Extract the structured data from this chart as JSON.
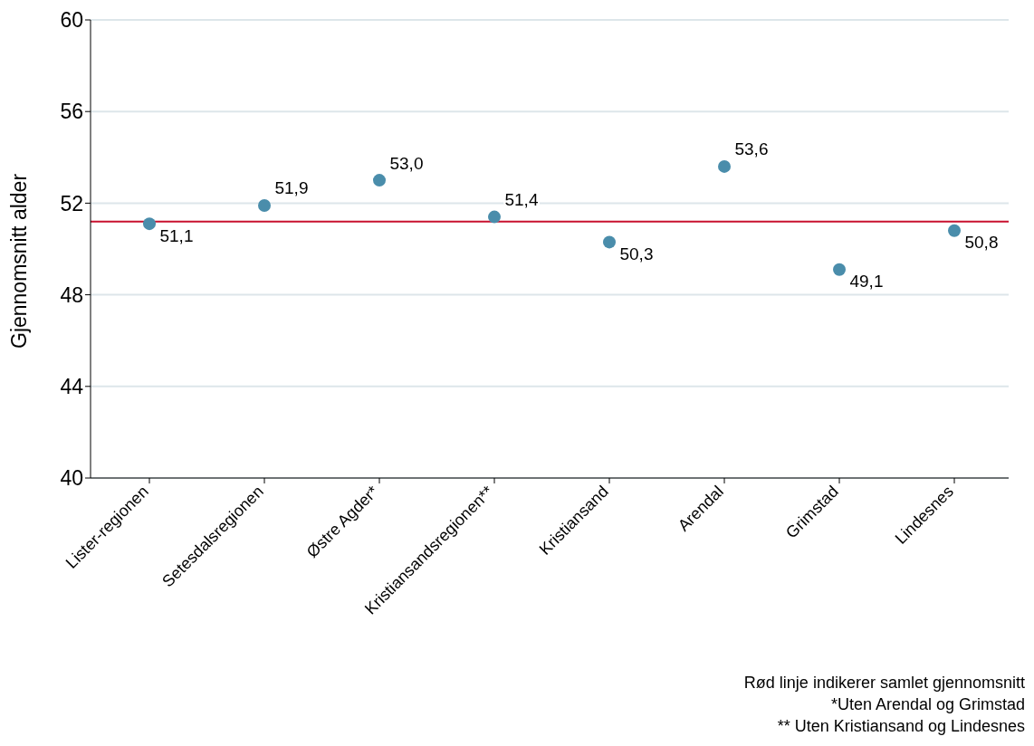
{
  "chart_data": {
    "type": "scatter",
    "ylabel": "Gjennomsnitt alder",
    "categories": [
      "Lister-regionen",
      "Setesdalsregionen",
      "Østre Agder*",
      "Kristiansandsregionen**",
      "Kristiansand",
      "Arendal",
      "Grimstad",
      "Lindesnes"
    ],
    "values": [
      51.1,
      51.9,
      53.0,
      51.4,
      50.3,
      53.6,
      49.1,
      50.8
    ],
    "value_labels": [
      "51,1",
      "51,9",
      "53,0",
      "51,4",
      "50,3",
      "53,6",
      "49,1",
      "50,8"
    ],
    "color": "#4a8dab",
    "marker": "circle",
    "ylim": [
      40,
      60
    ],
    "yticks": [
      40,
      44,
      48,
      52,
      56,
      60
    ],
    "grid": "y",
    "legend": false,
    "ref_lines": [
      {
        "axis": "y",
        "value": 51.2,
        "color": "#c8102e"
      }
    ],
    "annotations": [
      "Rød linje indikerer samlet gjennomsnitt",
      "*Uten Arendal og Grimstad",
      "** Uten Kristiansand og Lindesnes"
    ]
  }
}
